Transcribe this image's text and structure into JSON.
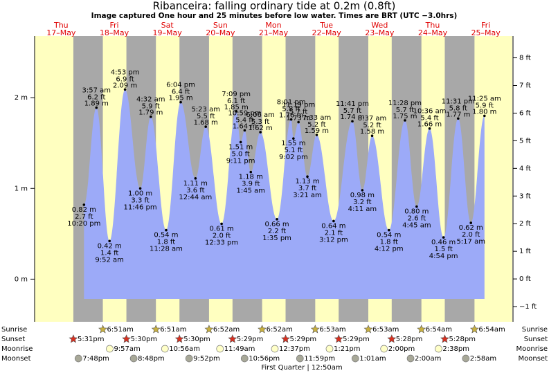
{
  "chart_data": {
    "type": "tide",
    "title": "Ribanceira: falling  ordinary tide at 0.2m (0.8ft)",
    "subtitle": "Image captured One hour and 25 minutes before low water. Times are BRT (UTC −3.0hrs)",
    "ylim": [
      -0.47,
      2.68
    ],
    "yticks": [
      {
        "value": 0,
        "label": "0 m"
      },
      {
        "value": 1,
        "label": "1 m"
      },
      {
        "value": 2,
        "label": "2 m"
      }
    ],
    "y2lim": [
      -1.55,
      8.79
    ],
    "y2ticks": [
      {
        "value": -1,
        "label": "−1 ft"
      },
      {
        "value": 0,
        "label": "0 ft"
      },
      {
        "value": 1,
        "label": "1 ft"
      },
      {
        "value": 2,
        "label": "2 ft"
      },
      {
        "value": 3,
        "label": "3 ft"
      },
      {
        "value": 4,
        "label": "4 ft"
      },
      {
        "value": 5,
        "label": "5 ft"
      },
      {
        "value": 6,
        "label": "6 ft"
      },
      {
        "value": 7,
        "label": "7 ft"
      },
      {
        "value": 8,
        "label": "8 ft"
      }
    ],
    "colors": {
      "day": "#ffffc0",
      "night": "#a8a8a8",
      "water": "#9caaf8",
      "day_label": "#e00000",
      "sunrise": "#c8b040",
      "sunset": "#d83020",
      "moonrise": "#ffffc8",
      "moonset": "#a8a898"
    },
    "row_labels": {
      "sunrise": "Sunrise",
      "sunset": "Sunset",
      "moonrise": "Moonrise",
      "moonset": "Moonset"
    },
    "days": [
      {
        "weekday": "Thu",
        "date": "17–May",
        "sunset": "5:31pm",
        "moonset": "7:48pm",
        "tides": [
          {
            "time": "10:20 pm",
            "m": 0.82,
            "m_label": "0.82 m",
            "ft": 2.7,
            "ft_label": "2.7 ft"
          }
        ]
      },
      {
        "weekday": "Fri",
        "date": "18–May",
        "sunrise": "6:51am",
        "sunset": "5:30pm",
        "moonrise": "9:57am",
        "moonset": "8:48pm",
        "tides": [
          {
            "time": "3:57 am",
            "m": 1.89,
            "m_label": "1.89 m",
            "ft": 6.2,
            "ft_label": "6.2 ft"
          },
          {
            "time": "9:52 am",
            "m": 0.42,
            "m_label": "0.42 m",
            "ft": 1.4,
            "ft_label": "1.4 ft"
          },
          {
            "time": "4:53 pm",
            "m": 2.09,
            "m_label": "2.09 m",
            "ft": 6.9,
            "ft_label": "6.9 ft"
          },
          {
            "time": "11:46 pm",
            "m": 1.0,
            "m_label": "1.00 m",
            "ft": 3.3,
            "ft_label": "3.3 ft"
          }
        ]
      },
      {
        "weekday": "Sat",
        "date": "19–May",
        "sunrise": "6:51am",
        "sunset": "5:30pm",
        "moonrise": "10:56am",
        "moonset": "9:52pm",
        "tides": [
          {
            "time": "4:32 am",
            "m": 1.79,
            "m_label": "1.79 m",
            "ft": 5.9,
            "ft_label": "5.9 ft"
          },
          {
            "time": "11:28 am",
            "m": 0.54,
            "m_label": "0.54 m",
            "ft": 1.8,
            "ft_label": "1.8 ft"
          },
          {
            "time": "6:04 pm",
            "m": 1.95,
            "m_label": "1.95 m",
            "ft": 6.4,
            "ft_label": "6.4 ft"
          }
        ]
      },
      {
        "weekday": "Sun",
        "date": "20–May",
        "sunrise": "6:52am",
        "sunset": "5:29pm",
        "moonrise": "11:49am",
        "moonset": "10:56pm",
        "tides": [
          {
            "time": "12:44 am",
            "m": 1.11,
            "m_label": "1.11 m",
            "ft": 3.6,
            "ft_label": "3.6 ft"
          },
          {
            "time": "5:23 am",
            "m": 1.68,
            "m_label": "1.68 m",
            "ft": 5.5,
            "ft_label": "5.5 ft"
          },
          {
            "time": "12:33 pm",
            "m": 0.61,
            "m_label": "0.61 m",
            "ft": 2.0,
            "ft_label": "2.0 ft"
          },
          {
            "time": "7:09 pm",
            "m": 1.85,
            "m_label": "1.85 m",
            "ft": 6.1,
            "ft_label": "6.1 ft"
          },
          {
            "time": "9:11 pm",
            "m": 1.51,
            "m_label": "1.51 m",
            "ft": 5.0,
            "ft_label": "5.0 ft"
          },
          {
            "time": "10:59 pm",
            "m": 1.64,
            "m_label": "1.64 m",
            "ft": 5.4,
            "ft_label": "5.4 ft"
          }
        ]
      },
      {
        "weekday": "Mon",
        "date": "21–May",
        "sunrise": "6:52am",
        "sunset": "5:29pm",
        "moonrise": "12:37pm",
        "moonset": "11:59pm",
        "tides": [
          {
            "time": "1:45 am",
            "m": 1.18,
            "m_label": "1.18 m",
            "ft": 3.9,
            "ft_label": "3.9 ft"
          },
          {
            "time": "6:06 am",
            "m": 1.62,
            "m_label": "1.62 m",
            "ft": 5.3,
            "ft_label": "5.3 ft"
          },
          {
            "time": "1:35 pm",
            "m": 0.66,
            "m_label": "0.66 m",
            "ft": 2.2,
            "ft_label": "2.2 ft"
          },
          {
            "time": "8:01 pm",
            "m": 1.76,
            "m_label": "1.76 m",
            "ft": 5.8,
            "ft_label": "5.8 ft"
          },
          {
            "time": "9:02 pm",
            "m": 1.55,
            "m_label": "1.55 m",
            "ft": 5.1,
            "ft_label": "5.1 ft"
          },
          {
            "time": "11:19 pm",
            "m": 1.73,
            "m_label": "1.73 m",
            "ft": 5.7,
            "ft_label": "5.7 ft"
          }
        ]
      },
      {
        "weekday": "Tue",
        "date": "22–May",
        "sunrise": "6:53am",
        "sunset": "5:29pm",
        "moonrise": "1:21pm",
        "moon_phase": "First Quarter | 12:50am",
        "tides": [
          {
            "time": "3:21 am",
            "m": 1.13,
            "m_label": "1.13 m",
            "ft": 3.7,
            "ft_label": "3.7 ft"
          },
          {
            "time": "7:33 am",
            "m": 1.59,
            "m_label": "1.59 m",
            "ft": 5.2,
            "ft_label": "5.2 ft"
          },
          {
            "time": "3:12 pm",
            "m": 0.64,
            "m_label": "0.64 m",
            "ft": 2.1,
            "ft_label": "2.1 ft"
          },
          {
            "time": "11:41 pm",
            "m": 1.74,
            "m_label": "1.74 m",
            "ft": 5.7,
            "ft_label": "5.7 ft"
          }
        ]
      },
      {
        "weekday": "Wed",
        "date": "23–May",
        "sunrise": "6:53am",
        "sunset": "5:28pm",
        "moonrise": "2:00pm",
        "moonset": "1:01am",
        "tides": [
          {
            "time": "4:11 am",
            "m": 0.98,
            "m_label": "0.98 m",
            "ft": 3.2,
            "ft_label": "3.2 ft"
          },
          {
            "time": "8:37 am",
            "m": 1.58,
            "m_label": "1.58 m",
            "ft": 5.2,
            "ft_label": "5.2 ft"
          },
          {
            "time": "4:12 pm",
            "m": 0.54,
            "m_label": "0.54 m",
            "ft": 1.8,
            "ft_label": "1.8 ft"
          },
          {
            "time": "11:28 pm",
            "m": 1.75,
            "m_label": "1.75 m",
            "ft": 5.7,
            "ft_label": "5.7 ft"
          }
        ]
      },
      {
        "weekday": "Thu",
        "date": "24–May",
        "sunrise": "6:54am",
        "sunset": "5:28pm",
        "moonrise": "2:38pm",
        "moonset": "2:00am",
        "tides": [
          {
            "time": "4:45 am",
            "m": 0.8,
            "m_label": "0.80 m",
            "ft": 2.6,
            "ft_label": "2.6 ft"
          },
          {
            "time": "10:36 am",
            "m": 1.66,
            "m_label": "1.66 m",
            "ft": 5.4,
            "ft_label": "5.4 ft"
          },
          {
            "time": "4:54 pm",
            "m": 0.46,
            "m_label": "0.46 m",
            "ft": 1.5,
            "ft_label": "1.5 ft"
          },
          {
            "time": "11:31 pm",
            "m": 1.77,
            "m_label": "1.77 m",
            "ft": 5.8,
            "ft_label": "5.8 ft"
          }
        ]
      },
      {
        "weekday": "Fri",
        "date": "25–May",
        "sunrise": "6:54am",
        "moonset": "2:58am",
        "tides": [
          {
            "time": "5:17 am",
            "m": 0.62,
            "m_label": "0.62 m",
            "ft": 2.0,
            "ft_label": "2.0 ft"
          },
          {
            "time": "11:25 am",
            "m": 1.8,
            "m_label": "1.80 m",
            "ft": 5.9,
            "ft_label": "5.9 ft"
          }
        ]
      }
    ]
  }
}
